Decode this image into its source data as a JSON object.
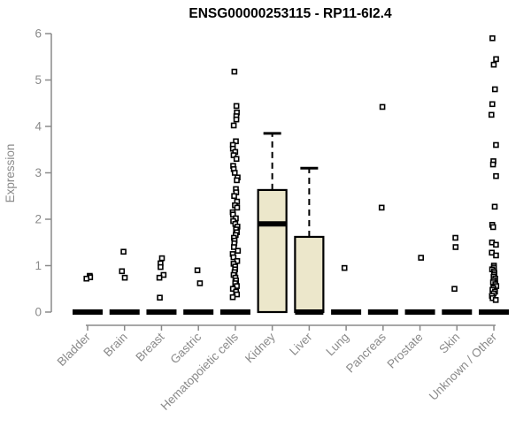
{
  "chart_data": {
    "type": "boxplot",
    "title": "ENSG00000253115 - RP11-6I2.4",
    "ylabel": "Expression",
    "xlabel": "",
    "ylim": [
      0,
      6
    ],
    "yticks": [
      0,
      1,
      2,
      3,
      4,
      5,
      6
    ],
    "grid": false,
    "legend": "none",
    "box_fill_color": "#ECE7CB",
    "box_stroke_color": "#000000",
    "axis_color": "#8A8A8A",
    "point_shape": "open-square",
    "categories": [
      "Bladder",
      "Brain",
      "Breast",
      "Gastric",
      "Hematopoietic cells",
      "Kidney",
      "Liver",
      "Lung",
      "Pancreas",
      "Prostate",
      "Skin",
      "Unknown / Other"
    ],
    "boxes": [
      {
        "category": "Bladder",
        "q1": 0,
        "median": 0,
        "q3": 0,
        "whisker_low": 0,
        "whisker_high": 0,
        "points": [
          0.78,
          0.75,
          0.72
        ]
      },
      {
        "category": "Brain",
        "q1": 0,
        "median": 0,
        "q3": 0,
        "whisker_low": 0,
        "whisker_high": 0,
        "points": [
          1.3,
          0.88,
          0.74
        ]
      },
      {
        "category": "Breast",
        "q1": 0,
        "median": 0,
        "q3": 0,
        "whisker_low": 0,
        "whisker_high": 0,
        "points": [
          1.16,
          1.05,
          0.97,
          0.8,
          0.74,
          0.31
        ]
      },
      {
        "category": "Gastric",
        "q1": 0,
        "median": 0,
        "q3": 0,
        "whisker_low": 0,
        "whisker_high": 0,
        "points": [
          0.9,
          0.62
        ]
      },
      {
        "category": "Hematopoietic cells",
        "q1": 0,
        "median": 0,
        "q3": 0,
        "whisker_low": 0,
        "whisker_high": 0,
        "points": [
          5.18,
          4.44,
          4.3,
          4.22,
          4.15,
          4.02,
          3.68,
          3.6,
          3.52,
          3.45,
          3.38,
          3.3,
          3.15,
          3.08,
          3.0,
          2.9,
          2.84,
          2.65,
          2.58,
          2.5,
          2.38,
          2.3,
          2.25,
          2.15,
          2.1,
          2.02,
          1.96,
          1.9,
          1.84,
          1.78,
          1.72,
          1.66,
          1.6,
          1.54,
          1.48,
          1.4,
          1.32,
          1.25,
          1.18,
          1.1,
          1.04,
          0.98,
          0.92,
          0.86,
          0.8,
          0.74,
          0.68,
          0.62,
          0.56,
          0.5,
          0.44,
          0.38,
          0.32
        ]
      },
      {
        "category": "Kidney",
        "q1": 0,
        "median": 1.9,
        "q3": 2.63,
        "whisker_low": 0,
        "whisker_high": 3.85,
        "points": []
      },
      {
        "category": "Liver",
        "q1": 0,
        "median": 0,
        "q3": 1.62,
        "whisker_low": 0,
        "whisker_high": 3.1,
        "points": []
      },
      {
        "category": "Lung",
        "q1": 0,
        "median": 0,
        "q3": 0,
        "whisker_low": 0,
        "whisker_high": 0,
        "points": [
          0.95
        ]
      },
      {
        "category": "Pancreas",
        "q1": 0,
        "median": 0,
        "q3": 0,
        "whisker_low": 0,
        "whisker_high": 0,
        "points": [
          4.42,
          2.25
        ]
      },
      {
        "category": "Prostate",
        "q1": 0,
        "median": 0,
        "q3": 0,
        "whisker_low": 0,
        "whisker_high": 0,
        "points": [
          1.17
        ]
      },
      {
        "category": "Skin",
        "q1": 0,
        "median": 0,
        "q3": 0,
        "whisker_low": 0,
        "whisker_high": 0,
        "points": [
          1.6,
          1.4,
          0.5
        ]
      },
      {
        "category": "Unknown / Other",
        "q1": 0,
        "median": 0,
        "q3": 0,
        "whisker_low": 0,
        "whisker_high": 0,
        "points": [
          5.9,
          5.45,
          5.33,
          4.8,
          4.48,
          4.25,
          3.6,
          3.25,
          3.18,
          2.93,
          2.27,
          1.88,
          1.83,
          1.5,
          1.45,
          1.28,
          1.22,
          1.0,
          0.96,
          0.92,
          0.88,
          0.84,
          0.8,
          0.76,
          0.72,
          0.68,
          0.64,
          0.6,
          0.56,
          0.52,
          0.48,
          0.44,
          0.4,
          0.35,
          0.3,
          0.26
        ]
      }
    ]
  }
}
